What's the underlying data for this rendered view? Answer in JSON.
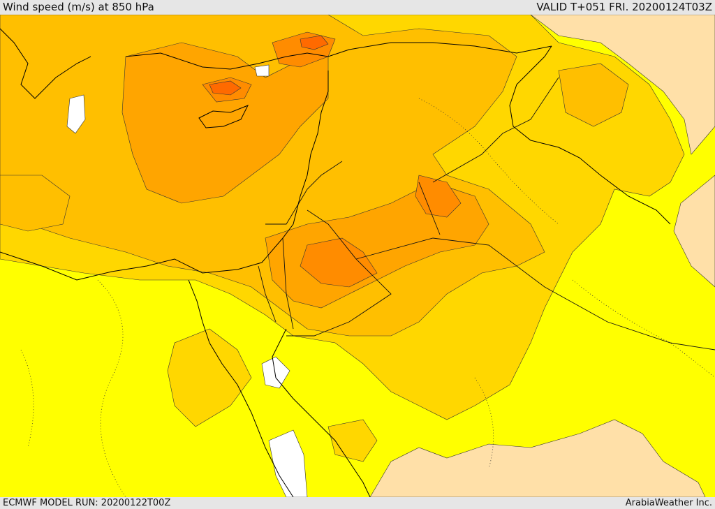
{
  "header": {
    "title": "Wind speed (m/s) at 850 hPa",
    "valid_time": "VALID T+051 FRI. 20200124T03Z"
  },
  "footer": {
    "model_run": "ECMWF MODEL RUN: 20200122T00Z",
    "credit": "ArabiaWeather Inc."
  },
  "colors": {
    "calm_white": "#ffffff",
    "band_tan": "#ffe0a8",
    "band_yellow": "#ffff00",
    "band_gold": "#ffd700",
    "band_amber": "#ffbf00",
    "band_orange": "#ffa500",
    "band_dark_orange": "#ff8c00",
    "band_red_orange": "#ff6a00",
    "coastline": "#000000"
  }
}
